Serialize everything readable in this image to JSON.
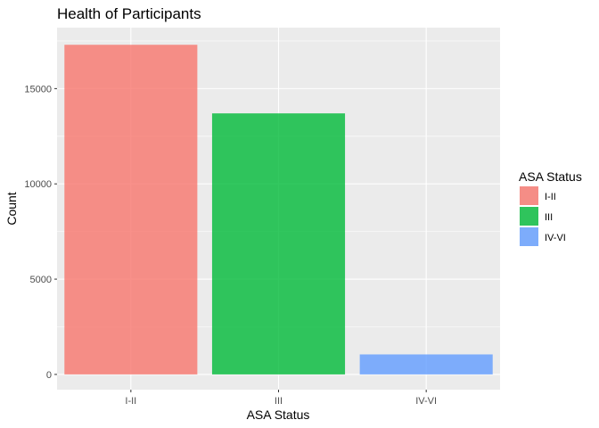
{
  "chart_data": {
    "type": "bar",
    "title": "Health of Participants",
    "xlabel": "ASA Status",
    "ylabel": "Count",
    "categories": [
      "I-II",
      "III",
      "IV-VI"
    ],
    "values": [
      17300,
      13700,
      1050
    ],
    "colors": [
      "#F8766D",
      "#00BA38",
      "#619CFF"
    ],
    "bar_opacity": 0.8,
    "ylim": [
      -800,
      18200
    ],
    "yticks": [
      0,
      5000,
      10000,
      15000
    ],
    "ytick_labels": [
      "0",
      "5000",
      "10000",
      "15000"
    ],
    "grid": true,
    "legend": {
      "title": "ASA Status",
      "position": "right",
      "labels": [
        "I-II",
        "III",
        "IV-VI"
      ]
    }
  }
}
